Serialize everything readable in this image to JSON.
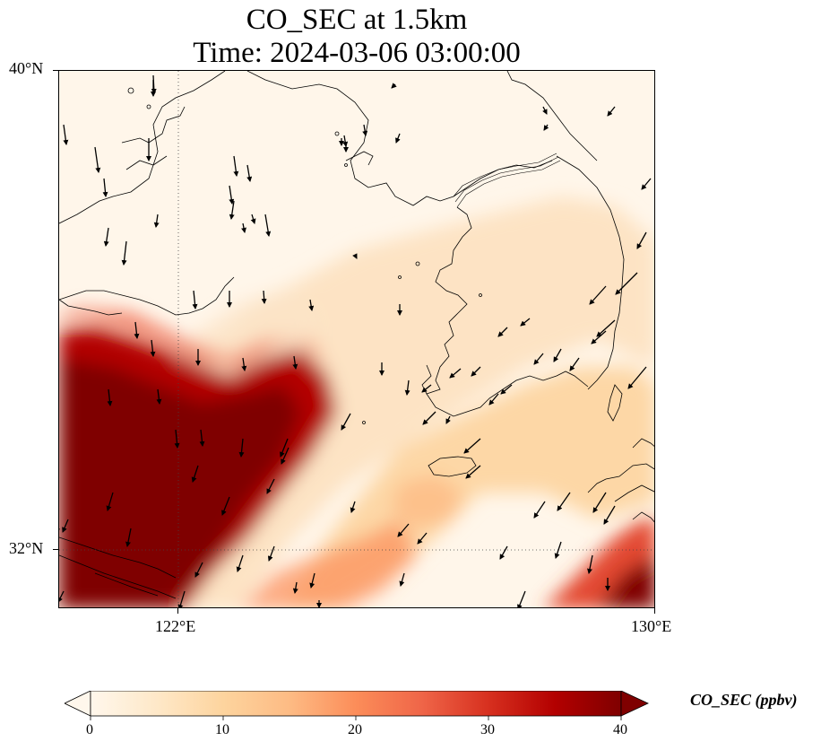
{
  "title": {
    "line1": "CO_SEC at 1.5km",
    "line2": "Time: 2024-03-06 03:00:00"
  },
  "axes": {
    "lat_ticks": [
      {
        "label": "40°N",
        "value": 40
      },
      {
        "label": "32°N",
        "value": 32
      }
    ],
    "lon_ticks": [
      {
        "label": "122°E",
        "value": 122
      },
      {
        "label": "130°E",
        "value": 130
      }
    ],
    "lon_range": [
      120,
      130
    ],
    "lat_range": [
      31,
      40
    ]
  },
  "colorbar": {
    "label": "CO_SEC (ppbv)",
    "ticks": [
      "0",
      "10",
      "20",
      "30",
      "40"
    ],
    "min": 0,
    "max": 40,
    "extend": "both",
    "colormap": "OrRd",
    "colors": [
      "#fff7ec",
      "#fee8c8",
      "#fdd49e",
      "#fdbb84",
      "#fc8d59",
      "#ef6548",
      "#d7301f",
      "#b30000",
      "#7f0000"
    ]
  },
  "map": {
    "region": "Yellow Sea, Korean Peninsula, Eastern China",
    "gridlines": "dotted at 122°E and 32°N",
    "wind_vectors": "black arrows"
  }
}
